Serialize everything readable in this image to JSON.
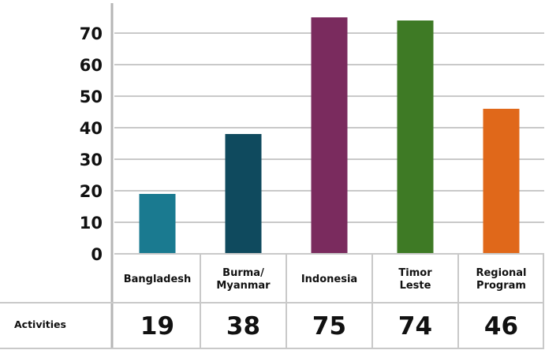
{
  "chart_data": {
    "type": "bar",
    "categories": [
      [
        "Bangladesh"
      ],
      [
        "Burma/",
        "Myanmar"
      ],
      [
        "Indonesia"
      ],
      [
        "Timor",
        "Leste"
      ],
      [
        "Regional",
        "Program"
      ]
    ],
    "series": [
      {
        "name": "Activities",
        "values": [
          19,
          38,
          75,
          74,
          46
        ]
      }
    ],
    "ylim": [
      0,
      70
    ],
    "y_ticks": [
      0,
      10,
      20,
      30,
      40,
      50,
      60,
      70
    ],
    "grid": true,
    "data_table": {
      "row_label": "Activities",
      "values": [
        "19",
        "38",
        "75",
        "74",
        "46"
      ]
    },
    "colors": [
      "#1a7a90",
      "#0f4a5e",
      "#7a2b5e",
      "#3e7a25",
      "#e0681a"
    ]
  }
}
